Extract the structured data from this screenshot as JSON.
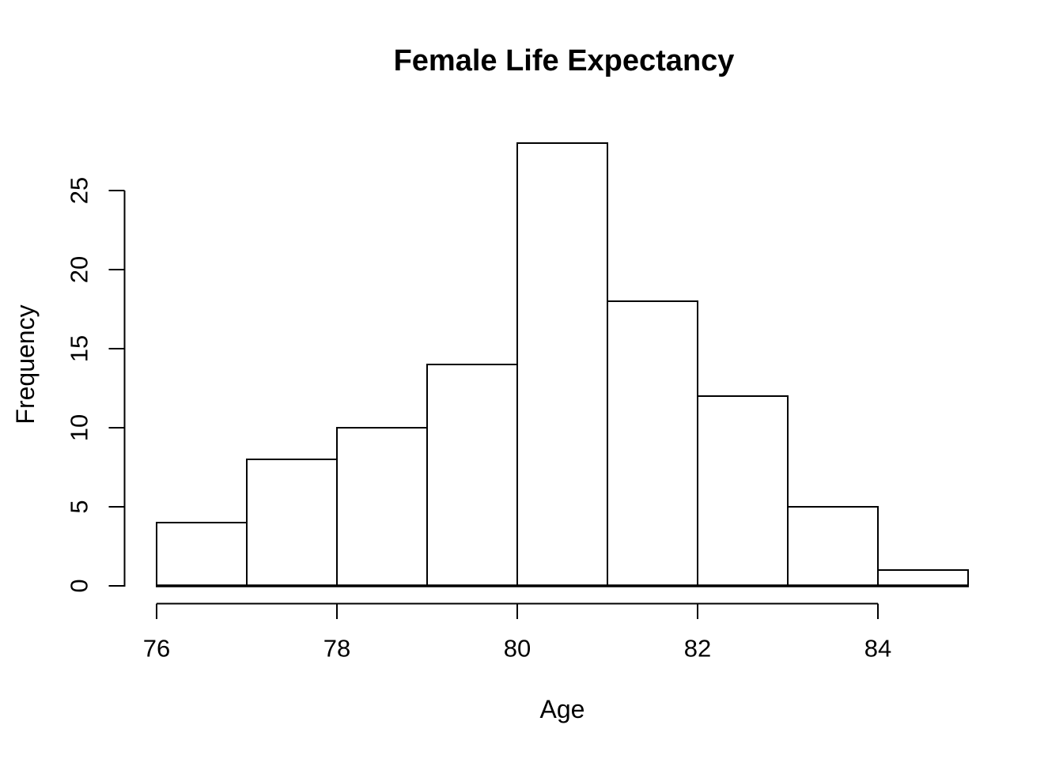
{
  "chart_data": {
    "type": "bar",
    "subtype": "histogram",
    "title": "Female Life Expectancy",
    "xlabel": "Age",
    "ylabel": "Frequency",
    "bins": {
      "start": 76,
      "bin_width": 1,
      "counts": [
        4,
        8,
        10,
        14,
        28,
        18,
        12,
        5,
        1
      ]
    },
    "bin_edges": [
      76,
      77,
      78,
      79,
      80,
      81,
      82,
      83,
      84,
      85
    ],
    "x_ticks": [
      76,
      78,
      80,
      82,
      84
    ],
    "y_ticks": [
      0,
      5,
      10,
      15,
      20,
      25
    ],
    "xlim": [
      76,
      85
    ],
    "ylim": [
      0,
      28
    ],
    "grid": false,
    "legend": null,
    "colors": {
      "bar_fill": "#ffffff",
      "line": "#000000",
      "text": "#000000",
      "background": "#ffffff"
    }
  }
}
